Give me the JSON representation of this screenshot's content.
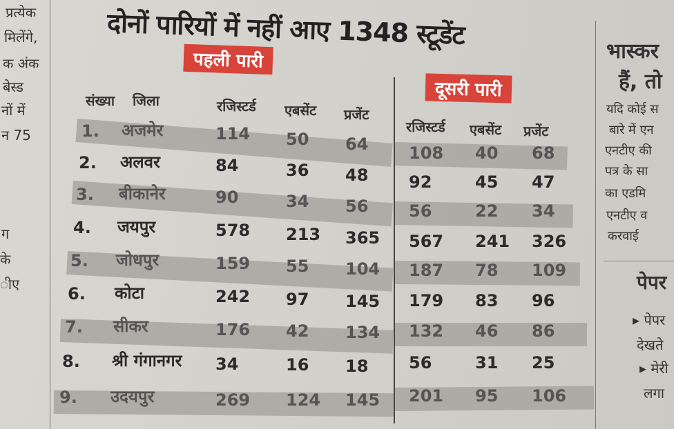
{
  "headline": "दोनों पारियों में नहीं आए 1348 स्टूडेंट",
  "first_shift": "पहली पारी",
  "second_shift": "दूसरी पारी",
  "headers": {
    "serial": "संख्या",
    "district": "जिला",
    "first": [
      "रजिस्टर्ड",
      "एबसेंट",
      "प्रजेंट"
    ],
    "second": [
      "रजिस्टर्ड",
      "एबसेंट",
      "प्रजेंट"
    ]
  },
  "rows": [
    {
      "no": "1.",
      "district": "अजमेर",
      "r1": "114",
      "a1": "50",
      "p1": "64",
      "r2": "108",
      "a2": "40",
      "p2": "68"
    },
    {
      "no": "2.",
      "district": "अलवर",
      "r1": "84",
      "a1": "36",
      "p1": "48",
      "r2": "92",
      "a2": "45",
      "p2": "47"
    },
    {
      "no": "3.",
      "district": "बीकानेर",
      "r1": "90",
      "a1": "34",
      "p1": "56",
      "r2": "56",
      "a2": "22",
      "p2": "34"
    },
    {
      "no": "4.",
      "district": "जयपुर",
      "r1": "578",
      "a1": "213",
      "p1": "365",
      "r2": "567",
      "a2": "241",
      "p2": "326"
    },
    {
      "no": "5.",
      "district": "जोधपुर",
      "r1": "159",
      "a1": "55",
      "p1": "104",
      "r2": "187",
      "a2": "78",
      "p2": "109"
    },
    {
      "no": "6.",
      "district": "कोटा",
      "r1": "242",
      "a1": "97",
      "p1": "145",
      "r2": "179",
      "a2": "83",
      "p2": "96"
    },
    {
      "no": "7.",
      "district": "सीकर",
      "r1": "176",
      "a1": "42",
      "p1": "134",
      "r2": "132",
      "a2": "46",
      "p2": "86"
    },
    {
      "no": "8.",
      "district": "श्री गंगानगर",
      "r1": "34",
      "a1": "16",
      "p1": "18",
      "r2": "56",
      "a2": "31",
      "p2": "25"
    },
    {
      "no": "9.",
      "district": "उदयपुर",
      "r1": "269",
      "a1": "124",
      "p1": "145",
      "r2": "201",
      "a2": "95",
      "p2": "106"
    }
  ],
  "left_column": [
    "प्रत्येक",
    "मिलेंगे,",
    "क अंक",
    "बेस्ड",
    "नों में",
    "न 75",
    "ग",
    "के",
    "ीए"
  ],
  "right_column": {
    "title": "भास्कर",
    "lines": [
      "हैं, तो",
      "यदि कोई स",
      "बारे में एन",
      "एनटीए की",
      "पत्र के सा",
      "का एडमि",
      "एनटीए व",
      "करवाई"
    ],
    "section": "पेपर",
    "bullets": [
      "पेपर",
      "देखते",
      "मेरी",
      "लगा"
    ]
  }
}
